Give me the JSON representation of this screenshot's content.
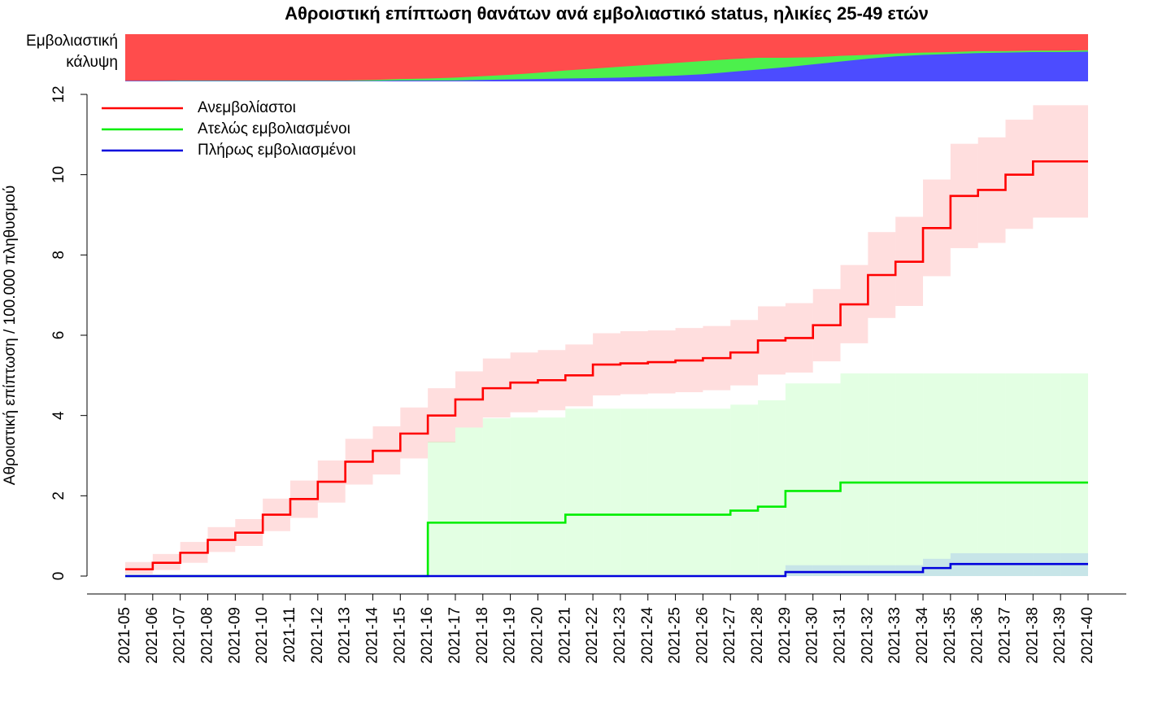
{
  "chart_data": {
    "type": "step",
    "title": "Αθροιστική επίπτωση θανάτων ανά εμβολιαστικό status, ηλικίες 25-49 ετών",
    "ylabel": "Αθροιστική επίπτωση / 100.000 πληθυσμού",
    "coverage_label": "Εμβολιαστική κάλυψη",
    "categories": [
      "2021-05",
      "2021-06",
      "2021-07",
      "2021-08",
      "2021-09",
      "2021-10",
      "2021-11",
      "2021-12",
      "2021-13",
      "2021-14",
      "2021-15",
      "2021-16",
      "2021-17",
      "2021-18",
      "2021-19",
      "2021-20",
      "2021-21",
      "2021-22",
      "2021-23",
      "2021-24",
      "2021-25",
      "2021-26",
      "2021-27",
      "2021-28",
      "2021-29",
      "2021-30",
      "2021-31",
      "2021-32",
      "2021-33",
      "2021-34",
      "2021-35",
      "2021-36",
      "2021-37",
      "2021-38",
      "2021-39",
      "2021-40"
    ],
    "ylim": [
      0,
      12
    ],
    "yticks": [
      0,
      2,
      4,
      6,
      8,
      10,
      12
    ],
    "legend": "top-left",
    "series": [
      {
        "name": "Ανεμβολίαστοι",
        "color": "#ff0000",
        "band_color": "rgba(255,0,0,0.13)",
        "values": [
          0.17,
          0.33,
          0.58,
          0.9,
          1.08,
          1.53,
          1.92,
          2.35,
          2.85,
          3.12,
          3.55,
          4.0,
          4.4,
          4.68,
          4.82,
          4.88,
          5.0,
          5.27,
          5.3,
          5.33,
          5.37,
          5.43,
          5.57,
          5.87,
          5.93,
          6.25,
          6.77,
          7.5,
          7.83,
          8.67,
          9.47,
          9.62,
          10.0,
          10.33,
          10.33,
          10.33
        ],
        "upper": [
          0.35,
          0.55,
          0.85,
          1.22,
          1.42,
          1.93,
          2.38,
          2.88,
          3.42,
          3.73,
          4.2,
          4.68,
          5.1,
          5.42,
          5.57,
          5.63,
          5.77,
          6.05,
          6.1,
          6.12,
          6.18,
          6.23,
          6.38,
          6.72,
          6.8,
          7.15,
          7.75,
          8.57,
          8.95,
          9.88,
          10.77,
          10.93,
          11.37,
          11.73,
          11.73,
          11.73
        ],
        "lower": [
          0.05,
          0.15,
          0.33,
          0.6,
          0.75,
          1.12,
          1.45,
          1.83,
          2.28,
          2.53,
          2.93,
          3.33,
          3.7,
          3.95,
          4.08,
          4.13,
          4.23,
          4.5,
          4.53,
          4.55,
          4.58,
          4.63,
          4.75,
          5.02,
          5.07,
          5.35,
          5.8,
          6.43,
          6.73,
          7.47,
          8.17,
          8.3,
          8.65,
          8.93,
          8.93,
          8.93
        ]
      },
      {
        "name": "Ατελώς εμβολιασμένοι",
        "color": "#00ee00",
        "band_color": "rgba(0,255,0,0.11)",
        "values": [
          0,
          0,
          0,
          0,
          0,
          0,
          0,
          0,
          0,
          0,
          0,
          1.33,
          1.33,
          1.33,
          1.33,
          1.33,
          1.53,
          1.53,
          1.53,
          1.53,
          1.53,
          1.53,
          1.63,
          1.73,
          2.12,
          2.12,
          2.33,
          2.33,
          2.33,
          2.33,
          2.33,
          2.33,
          2.33,
          2.33,
          2.33,
          2.33
        ],
        "upper": [
          0,
          0,
          0,
          0,
          0,
          0,
          0,
          0,
          0,
          0,
          0,
          3.35,
          3.7,
          3.93,
          3.95,
          3.95,
          4.17,
          4.17,
          4.17,
          4.17,
          4.17,
          4.17,
          4.27,
          4.38,
          4.8,
          4.8,
          5.05,
          5.05,
          5.05,
          5.05,
          5.05,
          5.05,
          5.05,
          5.05,
          5.05,
          5.05
        ],
        "lower": [
          0,
          0,
          0,
          0,
          0,
          0,
          0,
          0,
          0,
          0,
          0,
          0,
          0,
          0,
          0,
          0,
          0,
          0,
          0,
          0,
          0,
          0,
          0,
          0,
          0,
          0,
          0,
          0,
          0,
          0,
          0,
          0,
          0,
          0,
          0,
          0
        ]
      },
      {
        "name": "Πλήρως εμβολιασμένοι",
        "color": "#0000dd",
        "band_color": "rgba(70,110,255,0.18)",
        "values": [
          0,
          0,
          0,
          0,
          0,
          0,
          0,
          0,
          0,
          0,
          0,
          0,
          0,
          0,
          0,
          0,
          0,
          0,
          0,
          0,
          0,
          0,
          0,
          0,
          0.1,
          0.1,
          0.1,
          0.1,
          0.1,
          0.2,
          0.3,
          0.3,
          0.3,
          0.3,
          0.3,
          0.3
        ],
        "upper": [
          0,
          0,
          0,
          0,
          0,
          0,
          0,
          0,
          0,
          0,
          0,
          0,
          0,
          0,
          0,
          0,
          0,
          0,
          0,
          0,
          0,
          0,
          0,
          0,
          0.27,
          0.27,
          0.27,
          0.27,
          0.27,
          0.43,
          0.57,
          0.57,
          0.57,
          0.57,
          0.57,
          0.57
        ],
        "lower": [
          0,
          0,
          0,
          0,
          0,
          0,
          0,
          0,
          0,
          0,
          0,
          0,
          0,
          0,
          0,
          0,
          0,
          0,
          0,
          0,
          0,
          0,
          0,
          0,
          0,
          0,
          0,
          0,
          0,
          0,
          0,
          0,
          0,
          0,
          0,
          0
        ]
      }
    ],
    "coverage": [
      {
        "color": "#ff4c4c"
      },
      {
        "color": "#4cf04c",
        "values": [
          0,
          0,
          0.01,
          0.01,
          0.01,
          0.01,
          0.01,
          0.01,
          0.01,
          0.02,
          0.03,
          0.04,
          0.06,
          0.08,
          0.1,
          0.13,
          0.17,
          0.2,
          0.23,
          0.25,
          0.27,
          0.28,
          0.27,
          0.25,
          0.2,
          0.15,
          0.12,
          0.08,
          0.06,
          0.05,
          0.04,
          0.04,
          0.03,
          0.03,
          0.03,
          0.03
        ]
      },
      {
        "color": "#4c4cff",
        "values": [
          0.01,
          0.01,
          0.01,
          0.01,
          0.01,
          0.01,
          0.01,
          0.01,
          0.01,
          0.01,
          0.02,
          0.02,
          0.02,
          0.03,
          0.04,
          0.05,
          0.06,
          0.07,
          0.08,
          0.1,
          0.12,
          0.15,
          0.2,
          0.25,
          0.3,
          0.36,
          0.42,
          0.48,
          0.53,
          0.56,
          0.58,
          0.6,
          0.61,
          0.62,
          0.62,
          0.63
        ]
      }
    ]
  }
}
